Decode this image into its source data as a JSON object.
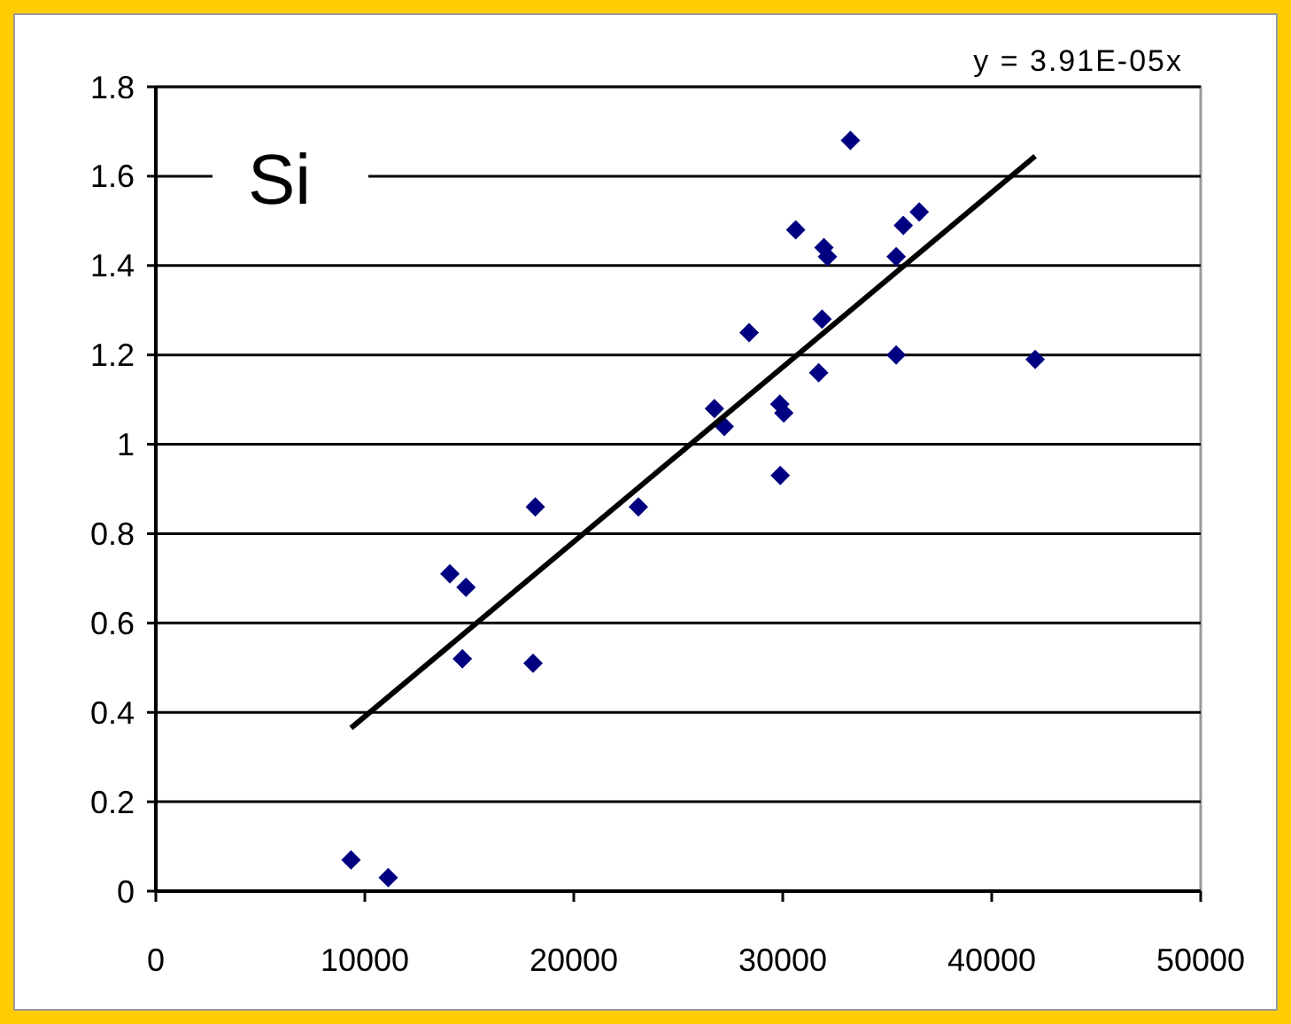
{
  "chart_data": {
    "type": "scatter",
    "title": "Si",
    "annotations": [
      "y = 3.91E-05x"
    ],
    "xlim": [
      0,
      50000
    ],
    "xticks": [
      0,
      10000,
      20000,
      30000,
      40000,
      50000
    ],
    "ylim": [
      0,
      1.8
    ],
    "yticks": [
      0,
      0.2,
      0.4,
      0.6,
      0.8,
      1,
      1.2,
      1.4,
      1.6,
      1.8
    ],
    "grid": "y",
    "marker": "diamond",
    "series": [
      {
        "color": "#000080",
        "x": [
          9340,
          11120,
          14070,
          14840,
          14670,
          18160,
          18050,
          23090,
          33240,
          30620,
          31970,
          32140,
          35770,
          36530,
          35430,
          28390,
          31880,
          35430,
          42080,
          31720,
          26730,
          27200,
          29860,
          30050,
          29880
        ],
        "values": [
          0.07,
          0.03,
          0.71,
          0.68,
          0.52,
          0.86,
          0.51,
          0.86,
          1.68,
          1.48,
          1.44,
          1.42,
          1.49,
          1.52,
          1.42,
          1.25,
          1.28,
          1.2,
          1.19,
          1.16,
          1.08,
          1.04,
          1.09,
          1.07,
          0.93
        ]
      },
      {
        "type": "line",
        "color": "#000000",
        "marker": "none",
        "line_style": "solid",
        "x": [
          9340,
          42080
        ],
        "values": [
          0.365,
          1.645
        ]
      }
    ]
  }
}
